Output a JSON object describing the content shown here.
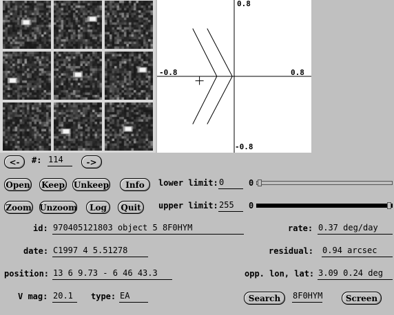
{
  "thumbnails": [
    {
      "blob": [
        0.48,
        0.45
      ]
    },
    {
      "blob": [
        0.8,
        0.38
      ]
    },
    {
      "blob": [
        0.0,
        0.0
      ]
    },
    {
      "blob": [
        0.2,
        0.6
      ]
    },
    {
      "blob": [
        0.5,
        0.48
      ]
    },
    {
      "blob": [
        0.78,
        0.38
      ]
    },
    {
      "blob": [
        0.0,
        0.0
      ]
    },
    {
      "blob": [
        0.25,
        0.6
      ]
    },
    {
      "blob": [
        0.48,
        0.55
      ]
    }
  ],
  "plot": {
    "labels": {
      "top": "0.8",
      "bottom": "-0.8",
      "left": "-0.8",
      "right": "0.8"
    },
    "range": {
      "min": -0.8,
      "max": 0.8
    },
    "chevrons": [
      {
        "tip": [
          -0.02,
          0.0
        ],
        "top": [
          -0.28,
          0.54
        ],
        "bottom": [
          -0.28,
          -0.54
        ]
      },
      {
        "tip": [
          -0.18,
          0.0
        ],
        "top": [
          -0.43,
          0.54
        ],
        "bottom": [
          -0.43,
          -0.54
        ]
      }
    ],
    "cross": [
      -0.36,
      -0.05
    ]
  },
  "nav": {
    "prev": "<-",
    "next": "->",
    "num_label": "#:",
    "num_value": "114"
  },
  "buttons": {
    "open": "Open",
    "keep": "Keep",
    "unkeep": "Unkeep",
    "info": "Info",
    "zoom": "Zoom",
    "unzoom": "Unzoom",
    "log": "Log",
    "quit": "Quit",
    "search": "Search",
    "screen": "Screen"
  },
  "limits": {
    "lower_label": "lower limit:",
    "lower_value": "0",
    "lower_slider": "0",
    "lower_fraction": 0.0,
    "upper_label": "upper limit:",
    "upper_value": "255",
    "upper_slider": "0",
    "upper_fraction": 1.0
  },
  "fields": {
    "id_label": "id:",
    "id_value": "970405121803 object 5  8F0HYM",
    "rate_label": "rate:",
    "rate_value": "0.37 deg/day",
    "date_label": "date:",
    "date_value": "C1997  4  5.51278",
    "residual_label": "residual:",
    "residual_value": "0.94 arcsec",
    "position_label": "position:",
    "position_value": "13  6  9.73 - 6 46 43.3",
    "opp_label": "opp. lon, lat:",
    "opp_value": "3.09  0.24 deg",
    "vmag_label": "V mag:",
    "vmag_value": "20.1",
    "type_label": "type:",
    "type_value": "EA",
    "search_value": "8F0HYM"
  }
}
